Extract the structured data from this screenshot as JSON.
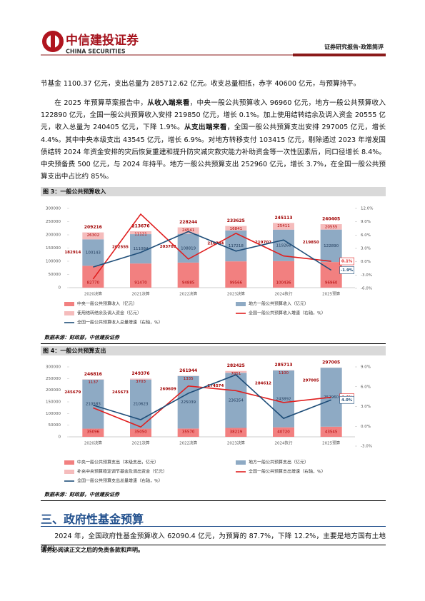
{
  "header": {
    "logo_cn": "中信建投证券",
    "logo_en": "CHINA SECURITIES",
    "report_type": "证券研究报告·政策简评"
  },
  "body": {
    "p1": "节基金 1100.37 亿元，支出总量为 285712.62 亿元。收支总量相抵，赤字 40600 亿元，与预算持平。",
    "p2": [
      "在 2025 年预算草案报告中，",
      "从收入端来看",
      "，中央一般公共预算收入 96960 亿元，地方一般公共预算收入 122890 亿元，全国一般公共预算收入安排 219850 亿元，增长 0.1%。加上使用结转结余及调入资金 20555 亿元，收入总量为 240405 亿元，下降 1.9%。",
      "从支出端来看",
      "，全国一般公共预算支出安排 297005 亿元，增长 4.4%。其中中央本级支出 43545 亿元，增长 6.9%。对地方转移支付 103415 亿元，剔除通过 2023 年增发国债结转 2024 年资金安排的灾后恢复重建和提升防灾减灾救灾能力补助资金等一次性因素后，同口径增长 8.4%。中央预备费 500 亿元，与 2024 年持平。地方一般公共预算支出 252960 亿元，增长 3.7%，在全国一般公共预算支出中占比约 85%。"
    ],
    "section_title": "三、政府性基金预算",
    "p3": "2024 年，全国政府性基金预算收入 62090.4 亿元，为预算的 87.7%，下降 12.2%，主要是地方国有土地使用"
  },
  "footer": "请务必阅读正文之后的免责条款和声明。",
  "chart_data": [
    {
      "type": "bar",
      "title": "图 3：一般公共预算收入",
      "source": "数据来源：财政部，中信建投证券",
      "categories": [
        "2020决算",
        "2021决算",
        "2022决算",
        "2023决算",
        "2024执行",
        "2025预算"
      ],
      "series": [
        {
          "name": "中央一般公共预算收入（亿元）",
          "color": "#f28080",
          "values": [
            82770,
            91470,
            94885,
            99566,
            100436,
            96960
          ]
        },
        {
          "name": "地方一般公共预算收入（亿元）",
          "color": "#8eaac4",
          "values": [
            100143,
            111084,
            108819,
            117218,
            119266,
            122890
          ]
        },
        {
          "name": "使用结转结余及调入资金（亿元）",
          "color": "#f5bcbc",
          "values": [
            26302,
            11121,
            24541,
            16841,
            25411,
            20555
          ]
        },
        {
          "name": "全国一般公共预算收入增速（右轴，%）",
          "color": "#e02020",
          "axis": "y2",
          "values": [
            -3.9,
            10.7,
            0.6,
            6.4,
            1.3,
            0.1
          ],
          "value_labels": [
            null,
            null,
            null,
            null,
            null,
            "0.1%"
          ]
        },
        {
          "name": "全国一般公共预算收入总量增速（右轴，%）",
          "color": "#1f4e79",
          "axis": "y2",
          "values": [
            -1.2,
            2.1,
            6.8,
            2.4,
            4.9,
            -1.9
          ],
          "value_labels": [
            null,
            null,
            null,
            null,
            null,
            "-1.9%"
          ]
        }
      ],
      "totals": [
        209216,
        213676,
        228244,
        233625,
        245113,
        240405
      ],
      "subtotals": [
        182914,
        202555,
        203703,
        216784,
        219702,
        219850
      ],
      "ylim": [
        0,
        300000
      ],
      "yticks": [
        0,
        50000,
        100000,
        150000,
        200000,
        250000,
        300000
      ],
      "y2lim": [
        -6,
        12
      ],
      "y2ticks": [
        {
          "value": -6,
          "label": "-6.0%"
        },
        {
          "value": -3,
          "label": "-3.0%"
        },
        {
          "value": 0,
          "label": "0.0%"
        },
        {
          "value": 3,
          "label": "3.0%"
        },
        {
          "value": 6,
          "label": "6.0%"
        },
        {
          "value": 9,
          "label": "9.0%"
        },
        {
          "value": 12,
          "label": "12.0%"
        }
      ]
    },
    {
      "type": "bar",
      "title": "图 4：一般公共预算支出",
      "source": "数据来源：财政部，中信建投证券",
      "categories": [
        "2020决算",
        "2021决算",
        "2022决算",
        "2023决算",
        "2024执行",
        "2025预算"
      ],
      "series": [
        {
          "name": "中央一般公共预算支出（本级支出，亿元）",
          "color": "#f28080",
          "values": [
            35096,
            35050,
            35570,
            38219,
            40720,
            43545
          ]
        },
        {
          "name": "地方一般公共预算支出（亿元）",
          "color": "#8eaac4",
          "values": [
            210583,
            210623,
            225039,
            236354,
            243892,
            252960
          ]
        },
        {
          "name": "补充中央预算稳定调节基金及调出资金（亿元）",
          "color": "#f5bcbc",
          "values": [
            1137,
            3703,
            1335,
            7851,
            1100,
            500
          ],
          "value_labels": [
            "1137",
            "3703",
            "1335",
            "7851",
            "1100",
            null
          ]
        },
        {
          "name": "全国一般公共预算支出增速（右轴，%）",
          "color": "#e02020",
          "axis": "y2",
          "values": [
            2.8,
            -0.1,
            6.1,
            5.4,
            3.6,
            4.4
          ],
          "value_labels": [
            null,
            null,
            null,
            null,
            null,
            "4.4%"
          ]
        },
        {
          "name": "全国一般公共预算支出总量增速（右轴，%）",
          "color": "#1f4e79",
          "axis": "y2",
          "values": [
            3.2,
            1.0,
            5.0,
            7.8,
            1.2,
            4.0
          ],
          "value_labels": [
            null,
            null,
            null,
            null,
            null,
            "4.0%"
          ]
        }
      ],
      "totals": [
        246816,
        249376,
        261944,
        282425,
        285713,
        297005
      ],
      "subtotals": [
        245679,
        245673,
        260609,
        274574,
        284612,
        297005
      ],
      "ylim": [
        0,
        300000
      ],
      "yticks": [
        0,
        50000,
        100000,
        150000,
        200000,
        250000,
        300000
      ],
      "y2lim": [
        -3,
        9
      ],
      "y2ticks": [
        {
          "value": -3,
          "label": "-3.0%"
        },
        {
          "value": 0,
          "label": "0.0%"
        },
        {
          "value": 3,
          "label": "3.0%"
        },
        {
          "value": 6,
          "label": "6.0%"
        },
        {
          "value": 9,
          "label": "9.0%"
        }
      ]
    }
  ]
}
